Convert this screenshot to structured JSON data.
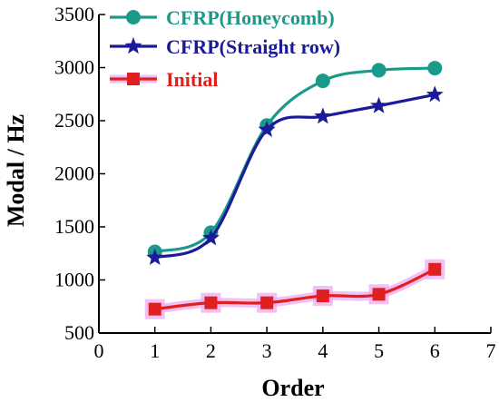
{
  "chart_data": {
    "type": "line",
    "xlabel": "Order",
    "ylabel": "Modal / Hz",
    "xlim": [
      0,
      7
    ],
    "ylim": [
      500,
      3500
    ],
    "xticks": [
      0,
      1,
      2,
      3,
      4,
      5,
      6,
      7
    ],
    "yticks": [
      500,
      1000,
      1500,
      2000,
      2500,
      3000,
      3500
    ],
    "grid": false,
    "legend_position": "top-left",
    "x": [
      1,
      2,
      3,
      4,
      5,
      6
    ],
    "series": [
      {
        "name": "CFRP(Honeycomb)",
        "values": [
          1265,
          1445,
          2455,
          2875,
          2975,
          2995
        ],
        "color": "#1a9a8a",
        "marker": "circle"
      },
      {
        "name": "CFRP(Straight row)",
        "values": [
          1210,
          1395,
          2415,
          2540,
          2640,
          2745
        ],
        "color": "#1a1a9a",
        "marker": "star"
      },
      {
        "name": "Initial",
        "values": [
          725,
          785,
          785,
          850,
          865,
          1100
        ],
        "color": "#e02020",
        "marker": "square",
        "glow": "#f0b0f0"
      }
    ]
  }
}
